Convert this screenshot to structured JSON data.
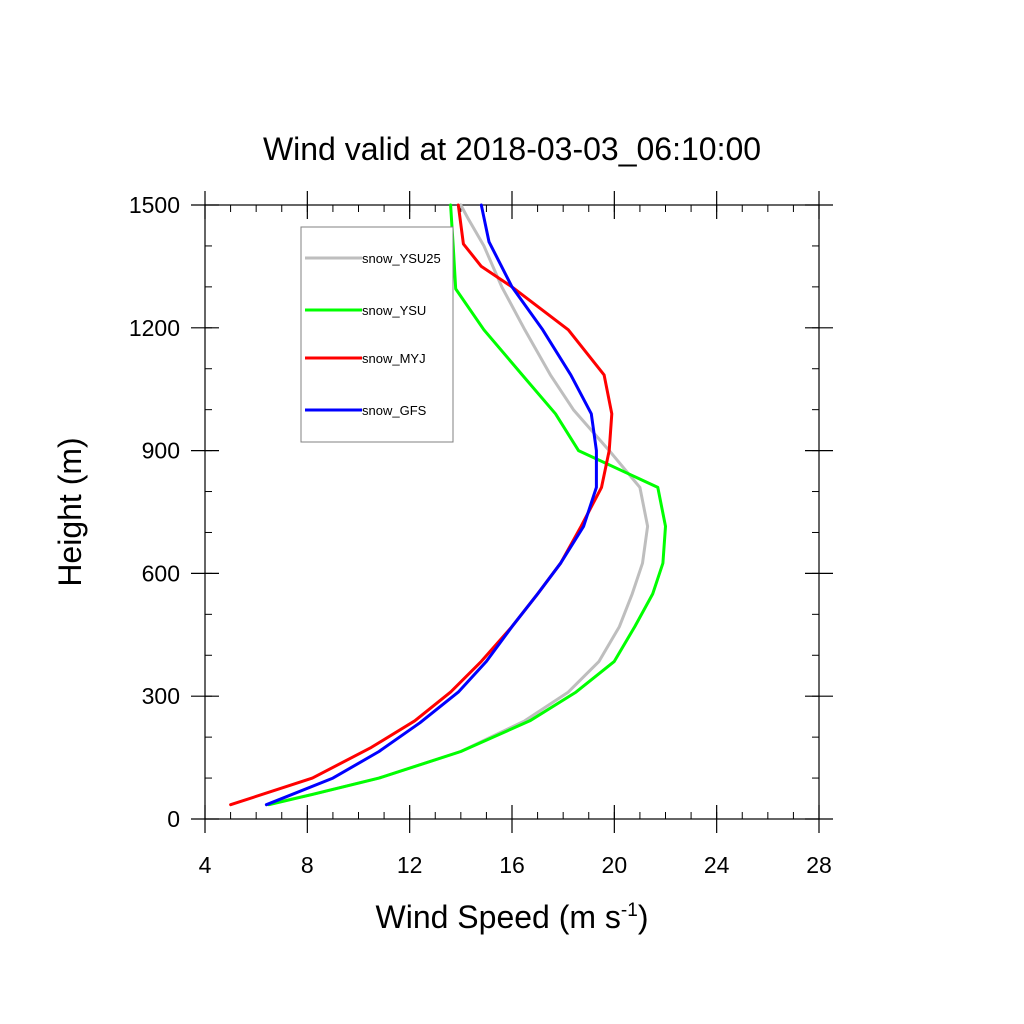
{
  "chart_data": {
    "type": "line",
    "title": "Wind valid at 2018-03-03_06:10:00",
    "xlabel": {
      "text": "Wind Speed (m s",
      "superscript": "-1",
      "suffix": ")"
    },
    "ylabel": "Height (m)",
    "xlim": [
      4,
      28
    ],
    "ylim": [
      0,
      1500
    ],
    "x_ticks": [
      4,
      8,
      12,
      16,
      20,
      24,
      28
    ],
    "y_ticks": [
      0,
      300,
      600,
      900,
      1200,
      1500
    ],
    "x_tick_labels": [
      "4",
      "8",
      "12",
      "16",
      "20",
      "24",
      "28"
    ],
    "y_tick_labels": [
      "0",
      "300",
      "600",
      "900",
      "1200",
      "1500"
    ],
    "x_minor_step": 1,
    "y_minor_step": 100,
    "grid": false,
    "legend_position": "top-left",
    "series": [
      {
        "name": "snow_YSU25",
        "color": "#bebebe",
        "points": [
          [
            6.4,
            35
          ],
          [
            8.2,
            60
          ],
          [
            10.8,
            100
          ],
          [
            14.0,
            165
          ],
          [
            16.5,
            240
          ],
          [
            18.2,
            310
          ],
          [
            19.4,
            385
          ],
          [
            20.2,
            470
          ],
          [
            20.7,
            550
          ],
          [
            21.1,
            625
          ],
          [
            21.3,
            715
          ],
          [
            21.0,
            810
          ],
          [
            19.8,
            900
          ],
          [
            18.4,
            1000
          ],
          [
            17.5,
            1085
          ],
          [
            16.5,
            1195
          ],
          [
            15.6,
            1300
          ],
          [
            14.9,
            1400
          ],
          [
            14.3,
            1465
          ],
          [
            14.0,
            1500
          ]
        ]
      },
      {
        "name": "snow_YSU",
        "color": "#00ff00",
        "points": [
          [
            6.5,
            35
          ],
          [
            8.2,
            60
          ],
          [
            10.8,
            100
          ],
          [
            14.0,
            165
          ],
          [
            16.7,
            240
          ],
          [
            18.5,
            310
          ],
          [
            20.0,
            385
          ],
          [
            20.8,
            470
          ],
          [
            21.5,
            550
          ],
          [
            21.9,
            625
          ],
          [
            22.0,
            715
          ],
          [
            21.7,
            810
          ],
          [
            18.6,
            900
          ],
          [
            17.7,
            990
          ],
          [
            16.4,
            1085
          ],
          [
            14.9,
            1195
          ],
          [
            13.8,
            1295
          ],
          [
            13.7,
            1400
          ],
          [
            13.6,
            1500
          ]
        ]
      },
      {
        "name": "snow_MYJ",
        "color": "#ff0000",
        "points": [
          [
            5.0,
            35
          ],
          [
            8.2,
            100
          ],
          [
            10.5,
            175
          ],
          [
            12.2,
            240
          ],
          [
            13.6,
            310
          ],
          [
            14.8,
            385
          ],
          [
            16.0,
            470
          ],
          [
            17.0,
            550
          ],
          [
            17.9,
            625
          ],
          [
            18.7,
            715
          ],
          [
            19.5,
            810
          ],
          [
            19.8,
            900
          ],
          [
            19.9,
            990
          ],
          [
            19.6,
            1085
          ],
          [
            18.2,
            1195
          ],
          [
            16.0,
            1300
          ],
          [
            14.8,
            1350
          ],
          [
            14.1,
            1405
          ],
          [
            13.9,
            1500
          ]
        ]
      },
      {
        "name": "snow_GFS",
        "color": "#0000ff",
        "points": [
          [
            6.4,
            35
          ],
          [
            9.0,
            100
          ],
          [
            10.8,
            165
          ],
          [
            12.4,
            235
          ],
          [
            13.9,
            310
          ],
          [
            15.0,
            385
          ],
          [
            16.0,
            470
          ],
          [
            17.0,
            550
          ],
          [
            17.9,
            625
          ],
          [
            18.8,
            715
          ],
          [
            19.3,
            810
          ],
          [
            19.3,
            900
          ],
          [
            19.1,
            990
          ],
          [
            18.3,
            1085
          ],
          [
            17.2,
            1195
          ],
          [
            16.0,
            1300
          ],
          [
            15.1,
            1410
          ],
          [
            14.8,
            1500
          ]
        ]
      }
    ]
  }
}
